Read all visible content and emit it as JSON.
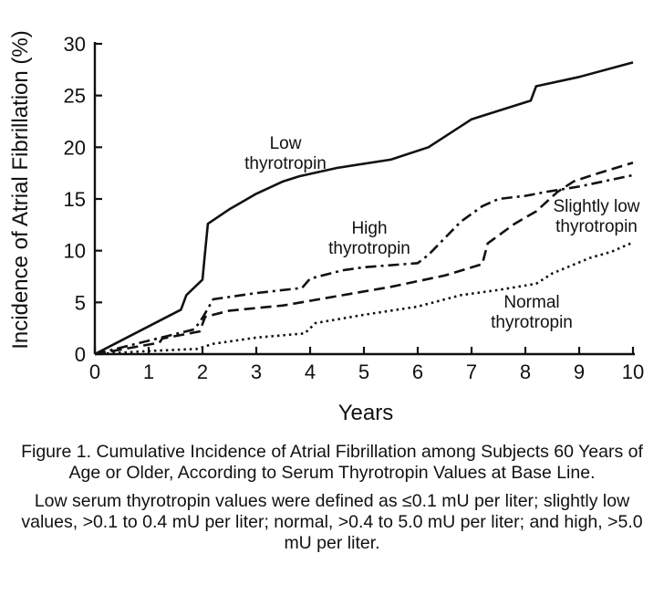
{
  "chart_data": {
    "type": "line",
    "title": "",
    "xlabel": "Years",
    "ylabel": "Incidence of Atrial Fibrillation (%)",
    "xlim": [
      0,
      10
    ],
    "ylim": [
      0,
      30
    ],
    "xticks": [
      "0",
      "1",
      "2",
      "3",
      "4",
      "5",
      "6",
      "7",
      "8",
      "9",
      "10"
    ],
    "yticks": [
      "0",
      "5",
      "10",
      "15",
      "20",
      "25",
      "30"
    ],
    "grid": false,
    "legend": "inline labels",
    "series": [
      {
        "name": "Low thyrotropin",
        "label_lines": [
          "Low",
          "thyrotropin"
        ],
        "dash": "solid",
        "points": [
          [
            0,
            0
          ],
          [
            1.6,
            4.3
          ],
          [
            1.7,
            5.7
          ],
          [
            1.9,
            6.7
          ],
          [
            2.0,
            7.2
          ],
          [
            2.05,
            9.9
          ],
          [
            2.1,
            12.6
          ],
          [
            2.5,
            14.0
          ],
          [
            3.0,
            15.5
          ],
          [
            3.5,
            16.7
          ],
          [
            3.8,
            17.2
          ],
          [
            4.5,
            18.0
          ],
          [
            5.5,
            18.8
          ],
          [
            6.2,
            20.0
          ],
          [
            7.0,
            22.7
          ],
          [
            7.3,
            23.2
          ],
          [
            8.1,
            24.5
          ],
          [
            8.2,
            25.9
          ],
          [
            9.0,
            26.8
          ],
          [
            10,
            28.2
          ]
        ]
      },
      {
        "name": "High thyrotropin",
        "label_lines": [
          "High",
          "thyrotropin"
        ],
        "dash": "dash-dot",
        "points": [
          [
            0,
            0
          ],
          [
            1.85,
            2.4
          ],
          [
            2.0,
            3.5
          ],
          [
            2.2,
            5.3
          ],
          [
            3.0,
            5.9
          ],
          [
            3.85,
            6.4
          ],
          [
            4.0,
            7.3
          ],
          [
            4.6,
            8.1
          ],
          [
            5.0,
            8.4
          ],
          [
            6.0,
            8.8
          ],
          [
            6.2,
            9.6
          ],
          [
            6.8,
            12.8
          ],
          [
            7.2,
            14.3
          ],
          [
            7.5,
            15.0
          ],
          [
            8.0,
            15.3
          ],
          [
            8.4,
            15.7
          ],
          [
            9.0,
            16.2
          ],
          [
            10,
            17.3
          ]
        ]
      },
      {
        "name": "Slightly low thyrotropin",
        "label_lines": [
          "Slightly low",
          "thyrotropin"
        ],
        "dash": "dashed",
        "points": [
          [
            0,
            0
          ],
          [
            1.2,
            1.1
          ],
          [
            1.25,
            1.5
          ],
          [
            1.95,
            2.2
          ],
          [
            2.05,
            3.6
          ],
          [
            2.5,
            4.2
          ],
          [
            3.5,
            4.7
          ],
          [
            4.5,
            5.6
          ],
          [
            5.5,
            6.5
          ],
          [
            6.5,
            7.6
          ],
          [
            7.2,
            8.7
          ],
          [
            7.3,
            10.7
          ],
          [
            7.8,
            12.6
          ],
          [
            8.2,
            13.8
          ],
          [
            8.6,
            15.7
          ],
          [
            8.9,
            16.7
          ],
          [
            9.3,
            17.4
          ],
          [
            10,
            18.5
          ]
        ]
      },
      {
        "name": "Normal thyrotropin",
        "label_lines": [
          "Normal",
          "thyrotropin"
        ],
        "dash": "dotted",
        "points": [
          [
            0,
            0
          ],
          [
            1.0,
            0.3
          ],
          [
            1.9,
            0.5
          ],
          [
            2.2,
            1.0
          ],
          [
            3.0,
            1.6
          ],
          [
            3.9,
            2.0
          ],
          [
            4.1,
            3.0
          ],
          [
            5.0,
            3.8
          ],
          [
            6.0,
            4.6
          ],
          [
            6.8,
            5.7
          ],
          [
            7.5,
            6.2
          ],
          [
            8.2,
            6.8
          ],
          [
            8.5,
            7.8
          ],
          [
            9.2,
            9.3
          ],
          [
            9.6,
            9.9
          ],
          [
            10,
            10.8
          ]
        ]
      }
    ]
  },
  "caption": {
    "title": "Figure 1. Cumulative Incidence of Atrial Fibrillation among Subjects 60 Years of Age or Older, According to Serum Thyrotropin Values at Base Line.",
    "note": "Low serum thyrotropin values were defined as ≤0.1 mU per liter; slightly low values, >0.1 to 0.4 mU per liter; normal, >0.4 to 5.0 mU per liter; and high, >5.0 mU per liter."
  }
}
